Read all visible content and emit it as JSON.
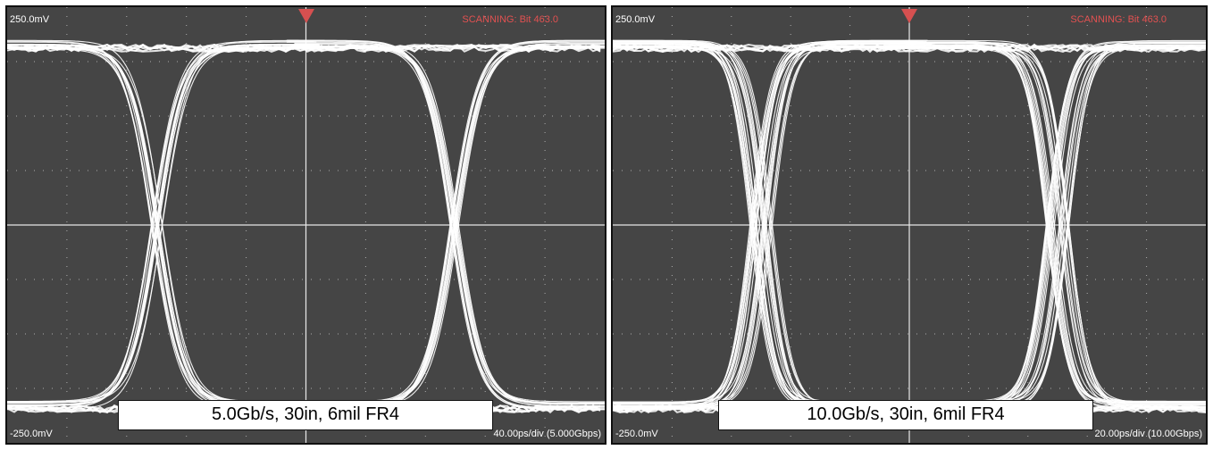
{
  "panels": [
    {
      "scale_top": "250.0mV",
      "scale_bottom": "-250.0mV",
      "status": "SCANNING: Bit 463.0",
      "timebase": "40.00ps/div (5.000Gbps)",
      "caption": "5.0Gb/s, 30in, 6mil FR4",
      "crossings_fraction": [
        0.25,
        0.75
      ]
    },
    {
      "scale_top": "250.0mV",
      "scale_bottom": "-250.0mV",
      "status": "SCANNING: Bit 463.0",
      "timebase": "20.00ps/div (10.00Gbps)",
      "caption": "10.0Gb/s, 30in, 6mil FR4",
      "crossings_fraction": [
        0.25,
        0.75
      ]
    }
  ],
  "colors": {
    "screen": "#454545",
    "trace": "#ffffff",
    "grid": "#c8c8c8",
    "status_text": "#e35151",
    "trigger_marker": "#d65050"
  }
}
